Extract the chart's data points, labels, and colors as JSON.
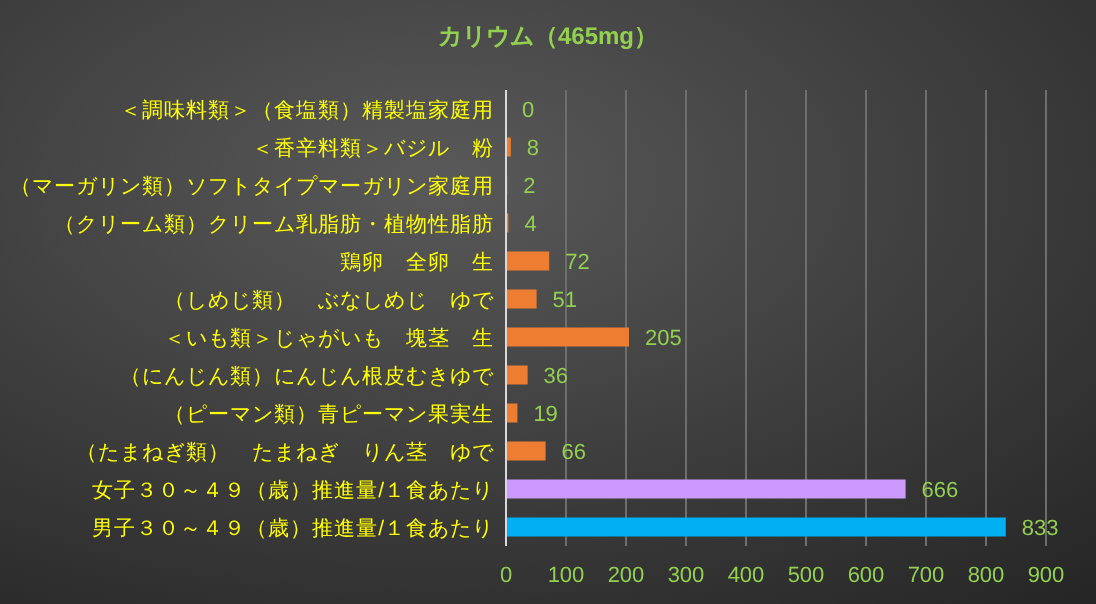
{
  "chart_data": {
    "type": "bar",
    "orientation": "horizontal",
    "title": "カリウム（465mg）",
    "categories": [
      "＜調味料類＞（食塩類）精製塩家庭用",
      "＜香辛料類＞バジル　粉",
      "（マーガリン類）ソフトタイプマーガリン家庭用",
      "（クリーム類）クリーム乳脂肪・植物性脂肪",
      "鶏卵　全卵　生",
      "（しめじ類）　ぶなしめじ　ゆで",
      "＜いも類＞じゃがいも　塊茎　生",
      "（にんじん類）にんじん根皮むきゆで",
      "（ピーマン類）青ピーマン果実生",
      "（たまねぎ類）　たまねぎ　りん茎　ゆで",
      "女子３０～４９（歳）推進量/１食あたり",
      "男子３０～４９（歳）推進量/１食あたり"
    ],
    "values": [
      0,
      8,
      2,
      4,
      72,
      51,
      205,
      36,
      19,
      66,
      666,
      833
    ],
    "colors": [
      "#ed7d31",
      "#ed7d31",
      "#ed7d31",
      "#ed7d31",
      "#ed7d31",
      "#ed7d31",
      "#ed7d31",
      "#ed7d31",
      "#ed7d31",
      "#ed7d31",
      "#cc99ff",
      "#00b0f0"
    ],
    "xlim": [
      0,
      900
    ],
    "xticks": [
      0,
      100,
      200,
      300,
      400,
      500,
      600,
      700,
      800,
      900
    ],
    "grid": "x",
    "data_labels": true
  }
}
